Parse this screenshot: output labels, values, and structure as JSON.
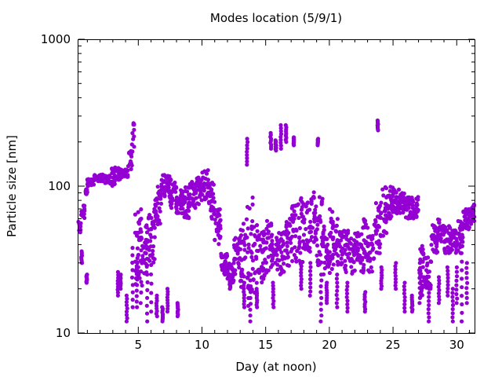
{
  "chart_data": {
    "type": "scatter",
    "title": "Modes location (5/9/1)",
    "xlabel": "Day (at noon)",
    "ylabel": "Particle size [nm]",
    "xlim": [
      0.3,
      31.4
    ],
    "ylim": [
      10,
      1000
    ],
    "yscale": "log",
    "x_ticks": [
      5,
      10,
      15,
      20,
      25,
      30
    ],
    "x_tick_labels": [
      "5",
      "10",
      "15",
      "20",
      "25",
      "30"
    ],
    "y_ticks": [
      10,
      100,
      1000
    ],
    "y_tick_labels": [
      "10",
      "100",
      "1000"
    ],
    "grid": false,
    "legend": "none",
    "marker_color": "#9400d3",
    "series": [
      {
        "bands": [
          [
            0.3,
            0.5,
            48,
            58
          ],
          [
            0.5,
            0.8,
            60,
            75
          ],
          [
            0.8,
            1.0,
            85,
            100
          ],
          [
            1.0,
            1.5,
            100,
            112
          ],
          [
            1.5,
            2.2,
            108,
            120
          ],
          [
            2.2,
            2.4,
            110,
            118
          ],
          [
            2.4,
            2.8,
            105,
            118
          ],
          [
            2.8,
            3.2,
            100,
            135
          ],
          [
            3.2,
            3.6,
            110,
            140
          ],
          [
            3.6,
            4.2,
            115,
            130
          ],
          [
            4.2,
            4.5,
            130,
            175
          ],
          [
            4.5,
            4.7,
            170,
            290
          ],
          [
            4.7,
            5.3,
            20,
            80
          ],
          [
            5.3,
            5.8,
            25,
            55
          ],
          [
            5.8,
            6.3,
            30,
            70
          ],
          [
            6.3,
            6.8,
            55,
            100
          ],
          [
            6.8,
            7.5,
            85,
            120
          ],
          [
            7.5,
            8.0,
            70,
            115
          ],
          [
            8.0,
            8.5,
            65,
            95
          ],
          [
            8.5,
            9.0,
            60,
            100
          ],
          [
            9.0,
            9.5,
            70,
            110
          ],
          [
            9.5,
            10.0,
            75,
            115
          ],
          [
            10.0,
            10.5,
            80,
            130
          ],
          [
            10.5,
            11.0,
            60,
            110
          ],
          [
            11.0,
            11.5,
            40,
            70
          ],
          [
            11.5,
            12.0,
            25,
            35
          ],
          [
            12.0,
            12.5,
            22,
            30
          ],
          [
            12.5,
            13.0,
            25,
            45
          ],
          [
            13.0,
            13.5,
            20,
            60
          ],
          [
            13.5,
            14.0,
            15,
            90
          ],
          [
            14.0,
            14.5,
            18,
            55
          ],
          [
            14.5,
            15.0,
            20,
            50
          ],
          [
            15.0,
            15.5,
            25,
            60
          ],
          [
            15.5,
            16.0,
            27,
            45
          ],
          [
            16.0,
            16.5,
            25,
            50
          ],
          [
            16.5,
            17.0,
            28,
            65
          ],
          [
            17.0,
            17.5,
            30,
            80
          ],
          [
            17.5,
            18.0,
            28,
            85
          ],
          [
            18.0,
            18.5,
            35,
            80
          ],
          [
            18.5,
            19.0,
            40,
            95
          ],
          [
            19.0,
            19.5,
            25,
            85
          ],
          [
            19.5,
            20.0,
            25,
            60
          ],
          [
            20.0,
            20.5,
            25,
            70
          ],
          [
            20.5,
            21.0,
            25,
            60
          ],
          [
            21.0,
            21.5,
            25,
            50
          ],
          [
            21.5,
            22.0,
            25,
            45
          ],
          [
            22.0,
            22.5,
            30,
            50
          ],
          [
            22.5,
            23.0,
            25,
            60
          ],
          [
            23.0,
            23.5,
            25,
            55
          ],
          [
            23.5,
            24.0,
            35,
            80
          ],
          [
            24.0,
            24.5,
            45,
            100
          ],
          [
            24.5,
            25.0,
            60,
            100
          ],
          [
            25.0,
            25.5,
            65,
            95
          ],
          [
            25.5,
            26.0,
            65,
            90
          ],
          [
            26.0,
            26.5,
            60,
            85
          ],
          [
            26.5,
            27.0,
            60,
            85
          ],
          [
            27.0,
            27.5,
            17,
            40
          ],
          [
            27.5,
            28.0,
            20,
            35
          ],
          [
            28.0,
            28.5,
            35,
            55
          ],
          [
            28.5,
            29.0,
            40,
            60
          ],
          [
            29.0,
            29.5,
            35,
            55
          ],
          [
            29.5,
            30.0,
            35,
            50
          ],
          [
            30.0,
            30.5,
            35,
            60
          ],
          [
            30.5,
            31.0,
            50,
            70
          ],
          [
            31.0,
            31.4,
            55,
            75
          ]
        ],
        "spikes": [
          [
            0.55,
            30,
            36
          ],
          [
            0.95,
            22,
            25
          ],
          [
            3.4,
            18,
            26
          ],
          [
            3.6,
            20,
            25
          ],
          [
            4.1,
            12,
            18
          ],
          [
            4.55,
            15,
            38
          ],
          [
            4.9,
            15,
            30
          ],
          [
            5.2,
            16,
            60
          ],
          [
            5.7,
            12,
            32
          ],
          [
            6.0,
            14,
            45
          ],
          [
            6.45,
            13,
            18
          ],
          [
            6.9,
            12,
            15
          ],
          [
            7.3,
            14,
            20
          ],
          [
            8.1,
            13,
            16
          ],
          [
            12.2,
            20,
            24
          ],
          [
            13.3,
            15,
            22
          ],
          [
            13.55,
            140,
            210
          ],
          [
            13.8,
            12,
            25
          ],
          [
            14.3,
            15,
            20
          ],
          [
            15.4,
            180,
            230
          ],
          [
            15.6,
            15,
            22
          ],
          [
            15.8,
            175,
            205
          ],
          [
            16.2,
            180,
            260
          ],
          [
            16.6,
            200,
            260
          ],
          [
            17.2,
            190,
            215
          ],
          [
            17.8,
            20,
            30
          ],
          [
            18.5,
            18,
            30
          ],
          [
            19.1,
            190,
            210
          ],
          [
            19.35,
            12,
            25
          ],
          [
            19.8,
            16,
            22
          ],
          [
            20.6,
            15,
            25
          ],
          [
            21.4,
            14,
            22
          ],
          [
            22.8,
            14,
            19
          ],
          [
            23.8,
            240,
            280
          ],
          [
            24.1,
            20,
            28
          ],
          [
            25.2,
            20,
            30
          ],
          [
            25.9,
            14,
            22
          ],
          [
            26.5,
            14,
            18
          ],
          [
            27.1,
            16,
            30
          ],
          [
            27.8,
            12,
            20
          ],
          [
            28.6,
            16,
            24
          ],
          [
            29.3,
            18,
            28
          ],
          [
            29.7,
            12,
            20
          ],
          [
            30.0,
            16,
            28
          ],
          [
            30.4,
            12,
            35
          ],
          [
            30.8,
            16,
            30
          ]
        ]
      }
    ]
  }
}
